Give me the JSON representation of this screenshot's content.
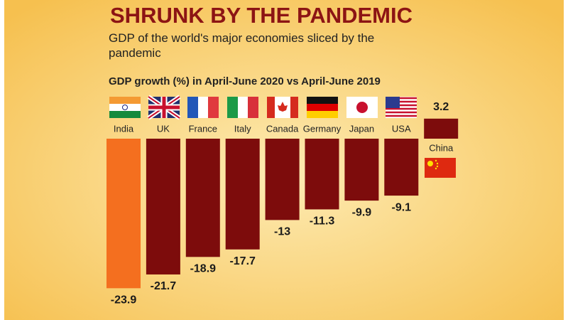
{
  "chart_data": {
    "type": "bar",
    "title": "SHRUNK BY THE PANDEMIC",
    "subtitle": "GDP of the world's major economies sliced by the pandemic",
    "y_label": "GDP growth (%) in April-June 2020 vs April-June 2019",
    "categories": [
      "India",
      "UK",
      "France",
      "Italy",
      "Canada",
      "Germany",
      "Japan",
      "USA",
      "China"
    ],
    "values": [
      -23.9,
      -21.7,
      -18.9,
      -17.7,
      -13,
      -11.3,
      -9.9,
      -9.1,
      3.2
    ],
    "colors": [
      "#f46f1f",
      "#7d0c0c",
      "#7d0c0c",
      "#7d0c0c",
      "#7d0c0c",
      "#7d0c0c",
      "#7d0c0c",
      "#7d0c0c",
      "#7d0c0c"
    ]
  }
}
